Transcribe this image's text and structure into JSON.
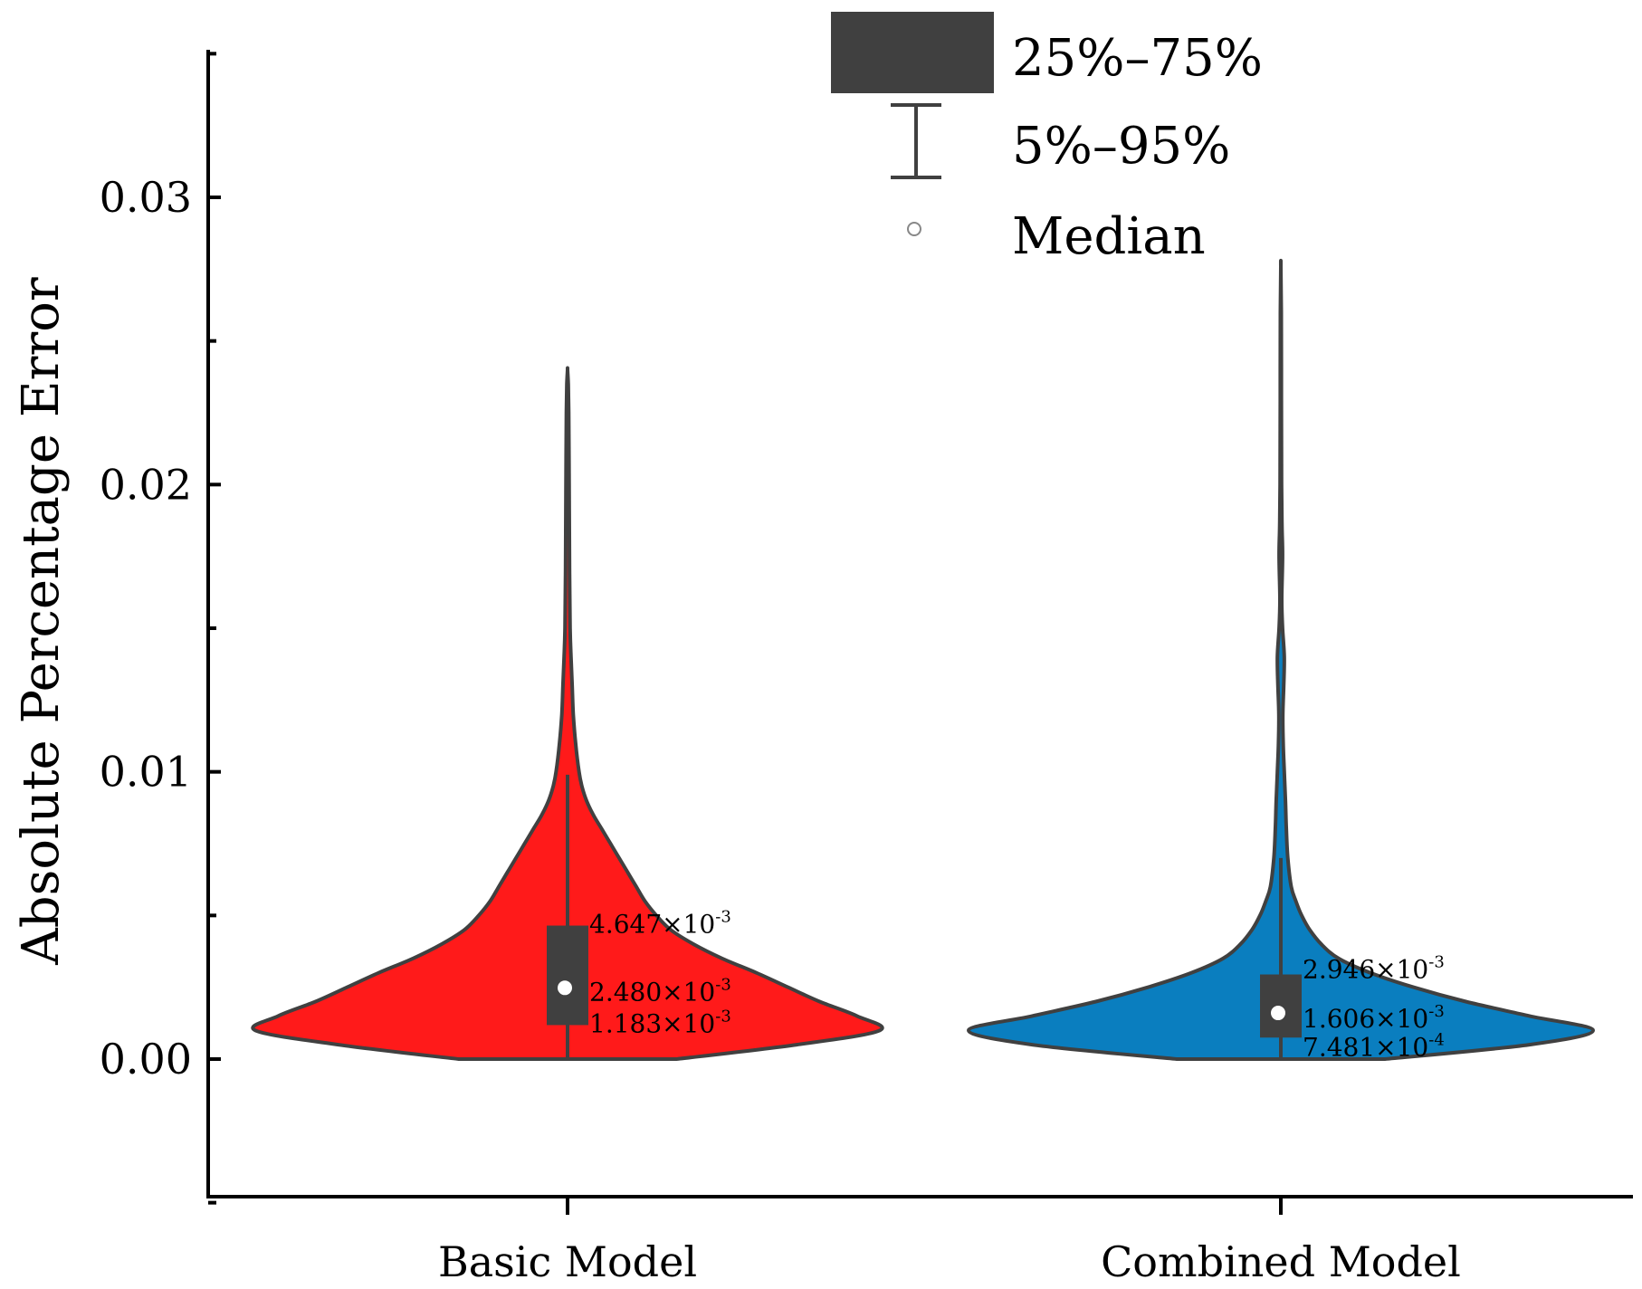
{
  "chart_data": {
    "type": "violin",
    "ylabel": "Absolute Percentage Error",
    "ylim": [
      -0.005,
      0.035
    ],
    "yticks": [
      0.0,
      0.01,
      0.02,
      0.03
    ],
    "ytick_labels": [
      "0.00",
      "0.01",
      "0.02",
      "0.03"
    ],
    "categories": [
      "Basic Model",
      "Combined Model"
    ],
    "legend": {
      "box": "25%–75%",
      "whisker": "5%–95%",
      "median": "Median"
    },
    "series": [
      {
        "name": "Basic Model",
        "color": "#ff1a1a",
        "max": 0.024,
        "q1": 0.001183,
        "median": 0.00248,
        "q3": 0.004647,
        "p5": 0.0,
        "p95": 0.0099,
        "q3_label": "4.647×10",
        "q3_exp": "-3",
        "median_label": "2.480×10",
        "median_exp": "-3",
        "q1_label": "1.183×10",
        "q1_exp": "-3",
        "density": [
          [
            0.0,
            0.19
          ],
          [
            0.0005,
            0.4
          ],
          [
            0.001,
            0.545
          ],
          [
            0.0015,
            0.505
          ],
          [
            0.002,
            0.44
          ],
          [
            0.0025,
            0.385
          ],
          [
            0.003,
            0.33
          ],
          [
            0.0035,
            0.27
          ],
          [
            0.004,
            0.22
          ],
          [
            0.0045,
            0.18
          ],
          [
            0.005,
            0.155
          ],
          [
            0.0055,
            0.135
          ],
          [
            0.006,
            0.12
          ],
          [
            0.0065,
            0.105
          ],
          [
            0.007,
            0.09
          ],
          [
            0.0075,
            0.075
          ],
          [
            0.008,
            0.06
          ],
          [
            0.0085,
            0.045
          ],
          [
            0.009,
            0.033
          ],
          [
            0.0095,
            0.025
          ],
          [
            0.01,
            0.02
          ],
          [
            0.011,
            0.014
          ],
          [
            0.012,
            0.01
          ],
          [
            0.013,
            0.008
          ],
          [
            0.014,
            0.006
          ],
          [
            0.015,
            0.0045
          ],
          [
            0.017,
            0.0035
          ],
          [
            0.019,
            0.003
          ],
          [
            0.021,
            0.0025
          ],
          [
            0.0225,
            0.002
          ],
          [
            0.0235,
            0.0012
          ],
          [
            0.024,
            0.0
          ]
        ]
      },
      {
        "name": "Combined Model",
        "color": "#0a7ebf",
        "max": 0.0276,
        "q1": 0.0007481,
        "median": 0.001606,
        "q3": 0.002946,
        "p5": 0.0,
        "p95": 0.007,
        "q3_label": "2.946×10",
        "q3_exp": "-3",
        "median_label": "1.606×10",
        "median_exp": "-3",
        "q1_label": "7.481×10",
        "q1_exp": "-4",
        "density": [
          [
            0.0,
            0.18
          ],
          [
            0.0005,
            0.43
          ],
          [
            0.001,
            0.54
          ],
          [
            0.0015,
            0.43
          ],
          [
            0.002,
            0.32
          ],
          [
            0.0025,
            0.23
          ],
          [
            0.003,
            0.155
          ],
          [
            0.0035,
            0.1
          ],
          [
            0.004,
            0.07
          ],
          [
            0.0045,
            0.05
          ],
          [
            0.005,
            0.036
          ],
          [
            0.0055,
            0.026
          ],
          [
            0.006,
            0.018
          ],
          [
            0.007,
            0.012
          ],
          [
            0.008,
            0.0095
          ],
          [
            0.009,
            0.008
          ],
          [
            0.01,
            0.006
          ],
          [
            0.011,
            0.004
          ],
          [
            0.012,
            0.0035
          ],
          [
            0.013,
            0.005
          ],
          [
            0.014,
            0.006
          ],
          [
            0.015,
            0.003
          ],
          [
            0.016,
            0.0015
          ],
          [
            0.0175,
            0.003
          ],
          [
            0.0185,
            0.002
          ],
          [
            0.02,
            0.0012
          ],
          [
            0.023,
            0.001
          ],
          [
            0.026,
            0.0008
          ],
          [
            0.0276,
            0.0
          ]
        ]
      }
    ]
  }
}
